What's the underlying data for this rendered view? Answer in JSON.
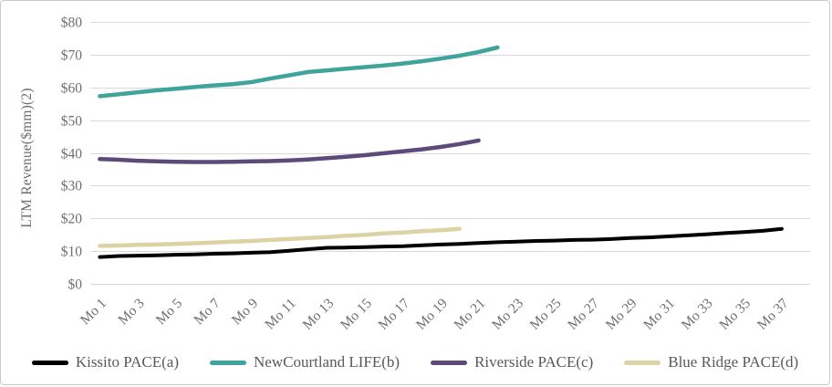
{
  "chart_data": {
    "type": "line",
    "title": "",
    "xlabel": "",
    "ylabel": "LTM Revenue($mm)(2)",
    "ylim": [
      0,
      80
    ],
    "ytick_step": 10,
    "ytick_prefix": "$",
    "grid": true,
    "legend_position": "bottom",
    "x_label_every": 2,
    "categories": [
      "Mo 1",
      "Mo 2",
      "Mo 3",
      "Mo 4",
      "Mo 5",
      "Mo 6",
      "Mo 7",
      "Mo 8",
      "Mo 9",
      "Mo 10",
      "Mo 11",
      "Mo 12",
      "Mo 13",
      "Mo 14",
      "Mo 15",
      "Mo 16",
      "Mo 17",
      "Mo 18",
      "Mo 19",
      "Mo 20",
      "Mo 21",
      "Mo 22",
      "Mo 23",
      "Mo 24",
      "Mo 25",
      "Mo 26",
      "Mo 27",
      "Mo 28",
      "Mo 29",
      "Mo 30",
      "Mo 31",
      "Mo 32",
      "Mo 33",
      "Mo 34",
      "Mo 35",
      "Mo 36",
      "Mo 37",
      "Mo 38"
    ],
    "series": [
      {
        "name": "Kissito PACE(a)",
        "color": "#000000",
        "line_width": 4,
        "values": [
          8.2,
          8.5,
          8.6,
          8.7,
          8.9,
          9.0,
          9.2,
          9.3,
          9.5,
          9.7,
          10.1,
          10.6,
          11.0,
          11.1,
          11.2,
          11.4,
          11.5,
          11.8,
          12.0,
          12.2,
          12.5,
          12.7,
          12.9,
          13.1,
          13.2,
          13.4,
          13.5,
          13.7,
          14.0,
          14.2,
          14.5,
          14.8,
          15.1,
          15.5,
          15.8,
          16.2,
          16.8
        ]
      },
      {
        "name": "NewCourtland LIFE(b)",
        "color": "#40a49c",
        "line_width": 4.5,
        "values": [
          57.3,
          57.9,
          58.5,
          59.1,
          59.6,
          60.1,
          60.6,
          61.0,
          61.6,
          62.7,
          63.7,
          64.7,
          65.2,
          65.7,
          66.2,
          66.7,
          67.3,
          68.0,
          68.8,
          69.7,
          70.8,
          72.2
        ]
      },
      {
        "name": "Riverside PACE(c)",
        "color": "#5c4a7d",
        "line_width": 4.5,
        "values": [
          38.1,
          37.9,
          37.6,
          37.4,
          37.3,
          37.2,
          37.2,
          37.3,
          37.4,
          37.5,
          37.7,
          38.0,
          38.4,
          38.8,
          39.3,
          39.9,
          40.5,
          41.1,
          41.8,
          42.7,
          43.8
        ]
      },
      {
        "name": "Blue Ridge PACE(d)",
        "color": "#dcd3a4",
        "line_width": 4.5,
        "values": [
          11.6,
          11.7,
          11.9,
          12.0,
          12.2,
          12.4,
          12.6,
          12.9,
          13.1,
          13.4,
          13.7,
          14.0,
          14.3,
          14.7,
          15.0,
          15.4,
          15.7,
          16.1,
          16.4,
          16.8
        ]
      }
    ]
  }
}
